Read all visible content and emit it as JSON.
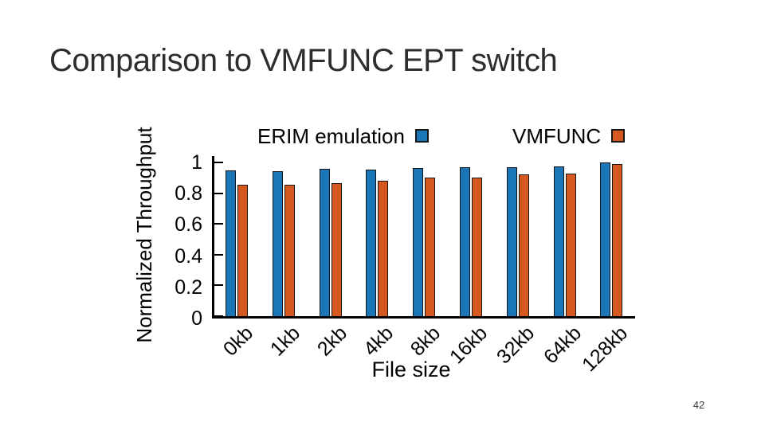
{
  "slide": {
    "title": "Comparison to VMFUNC EPT switch",
    "page_number": "42"
  },
  "chart_data": {
    "type": "bar",
    "title": "",
    "categories": [
      "0kb",
      "1kb",
      "2kb",
      "4kb",
      "8kb",
      "16kb",
      "32kb",
      "64kb",
      "128kb"
    ],
    "series": [
      {
        "name": "ERIM emulation",
        "color": "#1b76b8",
        "values": [
          0.95,
          0.945,
          0.96,
          0.955,
          0.965,
          0.97,
          0.97,
          0.975,
          1.0
        ]
      },
      {
        "name": "VMFUNC",
        "color": "#d5581e",
        "values": [
          0.855,
          0.855,
          0.865,
          0.88,
          0.9,
          0.9,
          0.92,
          0.925,
          0.99
        ]
      }
    ],
    "xlabel": "File size",
    "ylabel": "Normalized Throughput",
    "ylim": [
      0,
      1.04
    ],
    "yticks": [
      0,
      0.2,
      0.4,
      0.6,
      0.8,
      1
    ],
    "bar_edge_color": "#151515",
    "axis_color": "#000000",
    "legend_position": "top",
    "grid": false
  }
}
